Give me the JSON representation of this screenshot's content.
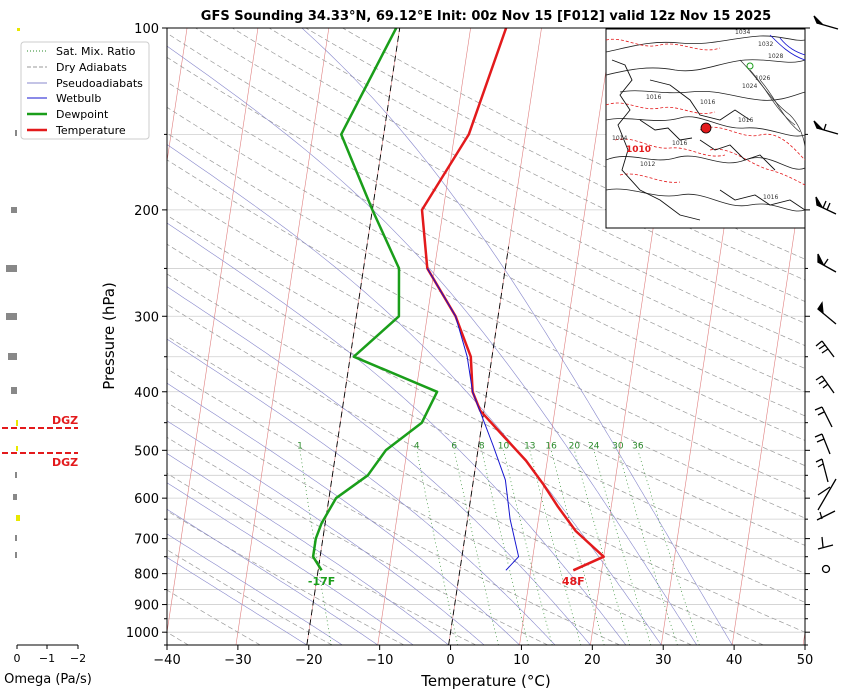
{
  "chart_data": {
    "type": "line",
    "title": "GFS Sounding 34.33°N, 69.12°E Init: 00z Nov 15 [F012] valid 12z Nov 15 2025",
    "xlabel": "Temperature (°C)",
    "ylabel": "Pressure (hPa)",
    "xlim": [
      -40,
      50
    ],
    "ylim": [
      1050,
      100
    ],
    "y_scale": "log",
    "x_ticks": [
      "−40",
      "−30",
      "−20",
      "−10",
      "0",
      "10",
      "20",
      "30",
      "40",
      "50"
    ],
    "y_ticks": [
      "100",
      "200",
      "300",
      "400",
      "500",
      "600",
      "700",
      "800",
      "900",
      "1000"
    ],
    "legend": {
      "placement": "top-left",
      "entries": [
        "Sat. Mix. Ratio",
        "Dry Adiabats",
        "Pseudoadiabats",
        "Wetbulb",
        "Dewpoint",
        "Temperature"
      ]
    },
    "series": [
      {
        "name": "Temperature",
        "color": "#e31a1c",
        "points": [
          [
            16,
            790
          ],
          [
            20,
            750
          ],
          [
            15.5,
            680
          ],
          [
            12.5,
            620
          ],
          [
            10,
            570
          ],
          [
            7,
            520
          ],
          [
            3,
            470
          ],
          [
            -0.5,
            430
          ],
          [
            -2,
            400
          ],
          [
            -3,
            350
          ],
          [
            -6,
            300
          ],
          [
            -11,
            250
          ],
          [
            -13,
            200
          ],
          [
            -8,
            150
          ],
          [
            -5,
            100
          ]
        ]
      },
      {
        "name": "Dewpoint",
        "color": "#1a9e1a",
        "points": [
          [
            -19.5,
            790
          ],
          [
            -21,
            750
          ],
          [
            -21,
            700
          ],
          [
            -20.5,
            660
          ],
          [
            -19,
            600
          ],
          [
            -15,
            550
          ],
          [
            -13,
            500
          ],
          [
            -8.5,
            450
          ],
          [
            -7,
            400
          ],
          [
            -19.5,
            350
          ],
          [
            -14,
            300
          ],
          [
            -15,
            250
          ],
          [
            -20,
            200
          ],
          [
            -26,
            150
          ],
          [
            -20.5,
            100
          ]
        ]
      },
      {
        "name": "Wetbulb",
        "color": "#1515d0",
        "points": [
          [
            6.5,
            790
          ],
          [
            8,
            750
          ],
          [
            6,
            650
          ],
          [
            4.5,
            560
          ],
          [
            2,
            490
          ],
          [
            -2,
            400
          ],
          [
            -3.5,
            350
          ],
          [
            -6,
            300
          ],
          [
            -11,
            250
          ]
        ]
      }
    ],
    "surface_labels": [
      {
        "text": "-17F",
        "color": "#1a9e1a",
        "x": -19.5,
        "p": 810
      },
      {
        "text": "48F",
        "color": "#e31a1c",
        "x": 16,
        "p": 810
      }
    ],
    "mixing_ratio_labels": [
      "1",
      "4",
      "6",
      "8",
      "10",
      "13",
      "16",
      "20",
      "24",
      "30",
      "36"
    ],
    "omega_panel": {
      "xlabel": "Omega (Pa/s)",
      "ticks": [
        "0",
        "−1",
        "−2"
      ],
      "dgz_label": "DGZ"
    },
    "inset_map": {
      "isobar_labels": [
        "1034",
        "1032",
        "1028",
        "1026",
        "1024",
        "1016",
        "1016",
        "1010",
        "1014",
        "1012",
        "1016",
        "1016",
        "1016"
      ],
      "marker_color": "#e31a1c"
    }
  }
}
